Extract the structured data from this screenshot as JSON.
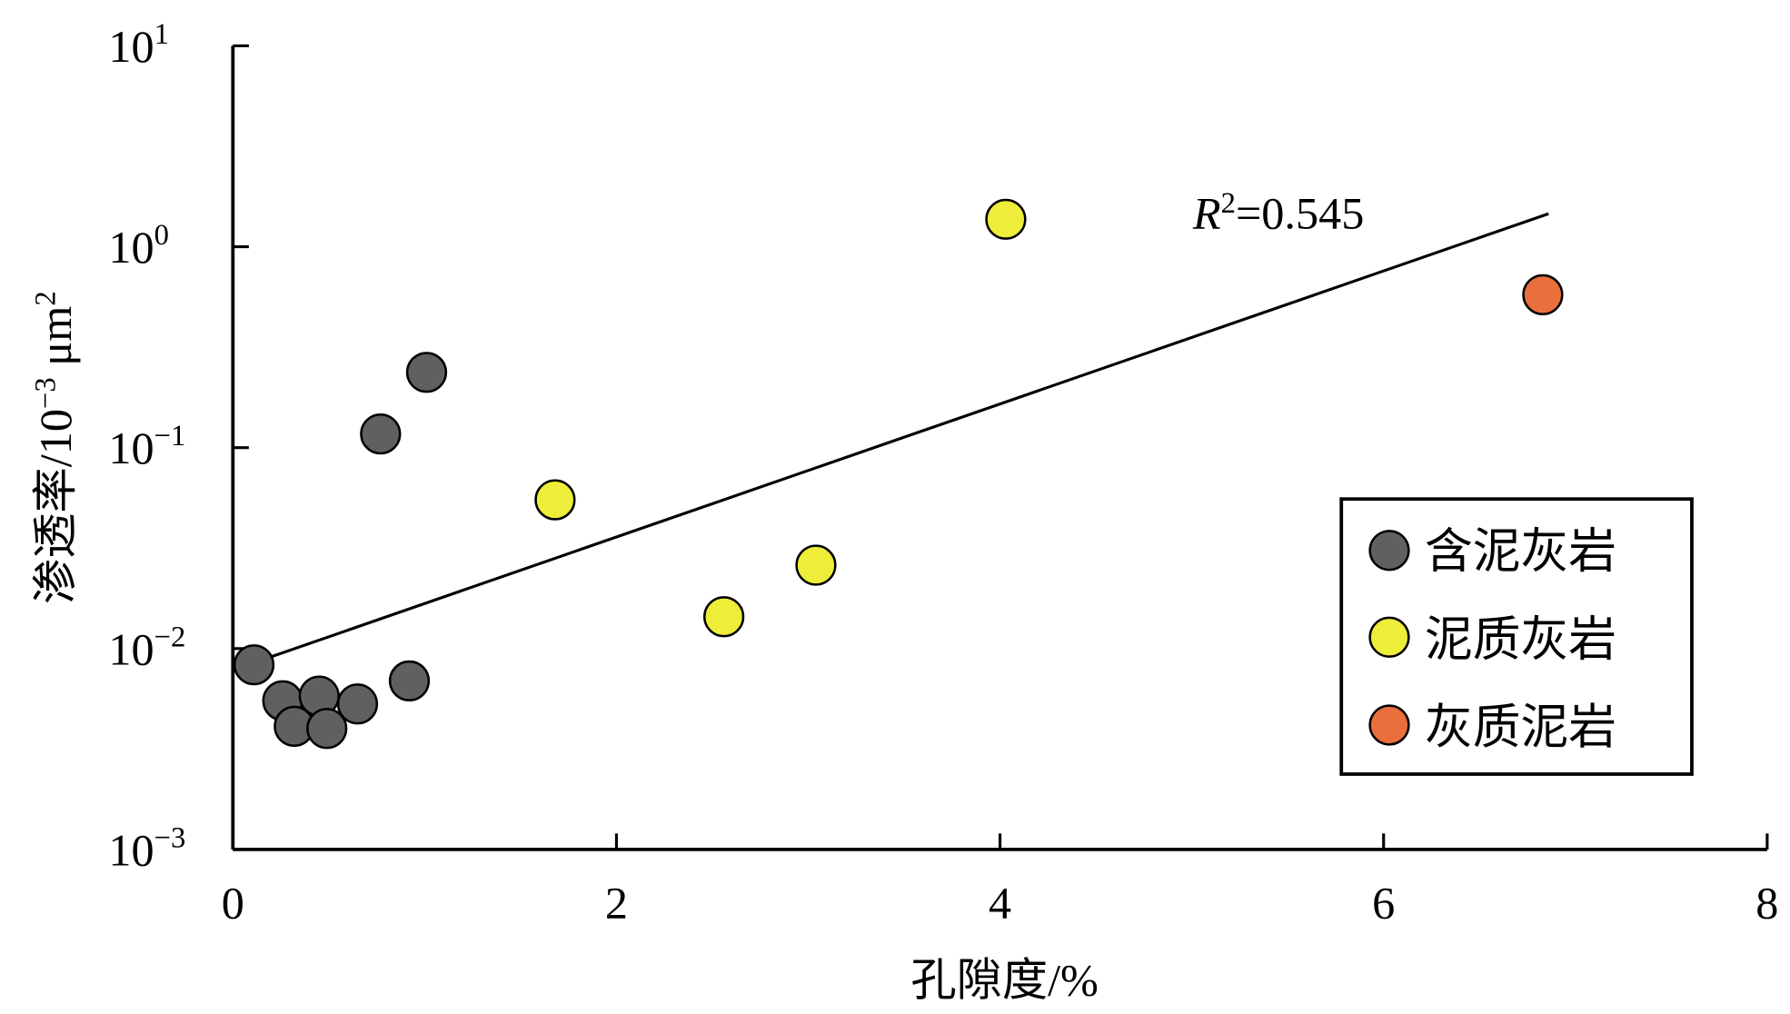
{
  "chart_data": {
    "type": "scatter",
    "xlabel": "孔隙度/%",
    "ylabel": "渗透率/10⁻³ μm²",
    "ylabel_parts": {
      "main": "渗透率/10",
      "exp": "−3",
      "unit": " μm",
      "unit_exp": "2"
    },
    "xlim": [
      0,
      8
    ],
    "ylim": [
      0.001,
      10
    ],
    "yscale": "log",
    "x_ticks": [
      0,
      2,
      4,
      6,
      8
    ],
    "x_tick_labels": [
      "0",
      "2",
      "4",
      "6",
      "8"
    ],
    "y_ticks": [
      10,
      1,
      0.1,
      0.01,
      0.001
    ],
    "y_tick_labels": [
      {
        "base": "10",
        "exp": "1"
      },
      {
        "base": "10",
        "exp": "0"
      },
      {
        "base": "10",
        "exp": "−1"
      },
      {
        "base": "10",
        "exp": "−2"
      },
      {
        "base": "10",
        "exp": "−3"
      }
    ],
    "grid": false,
    "legend_position": "right-middle",
    "series": [
      {
        "name": "含泥灰岩",
        "color": "#625f63",
        "points": [
          [
            0.11,
            0.0083
          ],
          [
            0.26,
            0.0055
          ],
          [
            0.45,
            0.0058
          ],
          [
            0.32,
            0.0041
          ],
          [
            0.49,
            0.004
          ],
          [
            0.65,
            0.0053
          ],
          [
            0.92,
            0.0069
          ],
          [
            0.77,
            0.117
          ],
          [
            1.01,
            0.237
          ]
        ]
      },
      {
        "name": "泥质灰岩",
        "color": "#eded3a",
        "points": [
          [
            1.68,
            0.055
          ],
          [
            2.56,
            0.0144
          ],
          [
            3.04,
            0.026
          ],
          [
            4.03,
            1.37
          ]
        ]
      },
      {
        "name": "灰质泥岩",
        "color": "#ea6f3c",
        "points": [
          [
            6.83,
            0.577
          ]
        ]
      }
    ],
    "trendline": {
      "type": "exponential",
      "x": [
        0.11,
        6.86
      ],
      "y": [
        0.0085,
        1.46
      ]
    },
    "annotation": {
      "r_label": "R",
      "r_exp": "2",
      "value_text": "=0.545"
    }
  }
}
